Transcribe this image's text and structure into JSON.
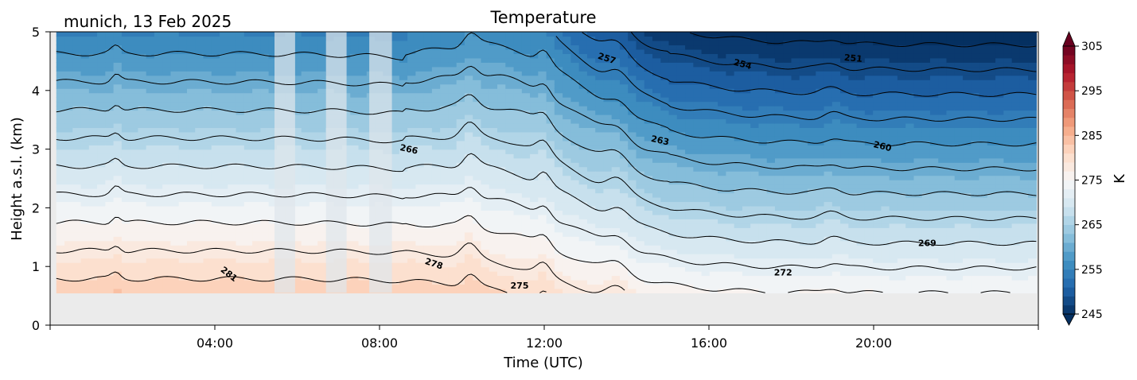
{
  "chart_data": {
    "type": "heatmap",
    "title": "Temperature",
    "location_date": "munich, 13 Feb 2025",
    "xlabel": "Time (UTC)",
    "ylabel": "Height a.s.l. (km)",
    "colorbar_label": "K",
    "xlim_hours": [
      0,
      24
    ],
    "ylim": [
      0,
      5
    ],
    "x_ticks": [
      {
        "hour": 4,
        "label": "04:00"
      },
      {
        "hour": 8,
        "label": "08:00"
      },
      {
        "hour": 12,
        "label": "12:00"
      },
      {
        "hour": 16,
        "label": "16:00"
      },
      {
        "hour": 20,
        "label": "20:00"
      }
    ],
    "y_ticks": [
      {
        "value": 0,
        "label": "0"
      },
      {
        "value": 1,
        "label": "1"
      },
      {
        "value": 2,
        "label": "2"
      },
      {
        "value": 3,
        "label": "3"
      },
      {
        "value": 4,
        "label": "4"
      },
      {
        "value": 5,
        "label": "5"
      }
    ],
    "colorbar": {
      "min": 245,
      "max": 305,
      "step": 2,
      "ticks": [
        {
          "value": 245,
          "label": "245"
        },
        {
          "value": 255,
          "label": "255"
        },
        {
          "value": 265,
          "label": "265"
        },
        {
          "value": 275,
          "label": "275"
        },
        {
          "value": 285,
          "label": "285"
        },
        {
          "value": 295,
          "label": "295"
        },
        {
          "value": 305,
          "label": "305"
        }
      ],
      "extend": "both",
      "colormap": "RdBu_r"
    },
    "data_bottom_km": 0.55,
    "data_start_hour": 0.15,
    "data_end_hour": 23.95,
    "missing_data_gaps_hours": [
      [
        5.45,
        5.95
      ],
      [
        6.7,
        7.2
      ],
      [
        7.75,
        8.3
      ]
    ],
    "contour_levels_K": [
      245,
      248,
      251,
      254,
      257,
      260,
      263,
      266,
      269,
      272,
      275,
      278,
      281
    ],
    "contour_labels": [
      {
        "label": "257",
        "hour": 13.5,
        "height": 4.5,
        "angle": 18
      },
      {
        "label": "254",
        "hour": 16.8,
        "height": 4.4,
        "angle": 15
      },
      {
        "label": "251",
        "hour": 19.5,
        "height": 4.5,
        "angle": 5
      },
      {
        "label": "266",
        "hour": 8.7,
        "height": 2.95,
        "angle": 12
      },
      {
        "label": "263",
        "hour": 14.8,
        "height": 3.1,
        "angle": 12
      },
      {
        "label": "260",
        "hour": 20.2,
        "height": 3.0,
        "angle": 14
      },
      {
        "label": "269",
        "hour": 21.3,
        "height": 1.35,
        "angle": 0
      },
      {
        "label": "272",
        "hour": 17.8,
        "height": 0.85,
        "angle": 0
      },
      {
        "label": "278",
        "hour": 9.3,
        "height": 1.0,
        "angle": 18
      },
      {
        "label": "275",
        "hour": 11.4,
        "height": 0.62,
        "angle": 0
      },
      {
        "label": "281",
        "hour": 4.3,
        "height": 0.83,
        "angle": 38
      }
    ]
  }
}
